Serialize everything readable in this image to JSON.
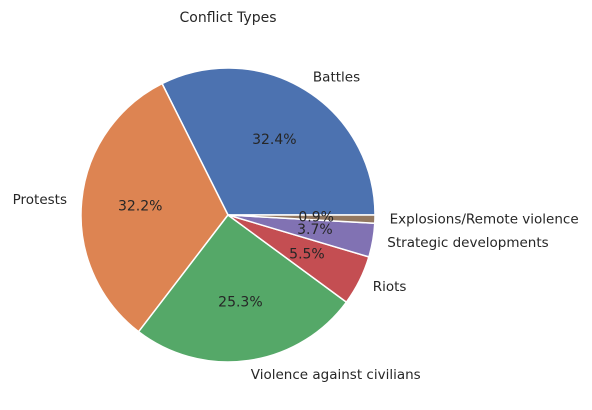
{
  "chart_data": {
    "type": "pie",
    "title": "Conflict Types",
    "start_angle_deg": 0,
    "direction": "counterclockwise",
    "slices": [
      {
        "label": "Battles",
        "value": 32.4,
        "pct_label": "32.4%",
        "color": "#4c72b0"
      },
      {
        "label": "Protests",
        "value": 32.2,
        "pct_label": "32.2%",
        "color": "#dd8452"
      },
      {
        "label": "Violence against civilians",
        "value": 25.3,
        "pct_label": "25.3%",
        "color": "#55a868"
      },
      {
        "label": "Riots",
        "value": 5.5,
        "pct_label": "5.5%",
        "color": "#c44e52"
      },
      {
        "label": "Strategic developments",
        "value": 3.7,
        "pct_label": "3.7%",
        "color": "#8172b3"
      },
      {
        "label": "Explosions/Remote violence",
        "value": 0.9,
        "pct_label": "0.9%",
        "color": "#937860"
      }
    ]
  }
}
